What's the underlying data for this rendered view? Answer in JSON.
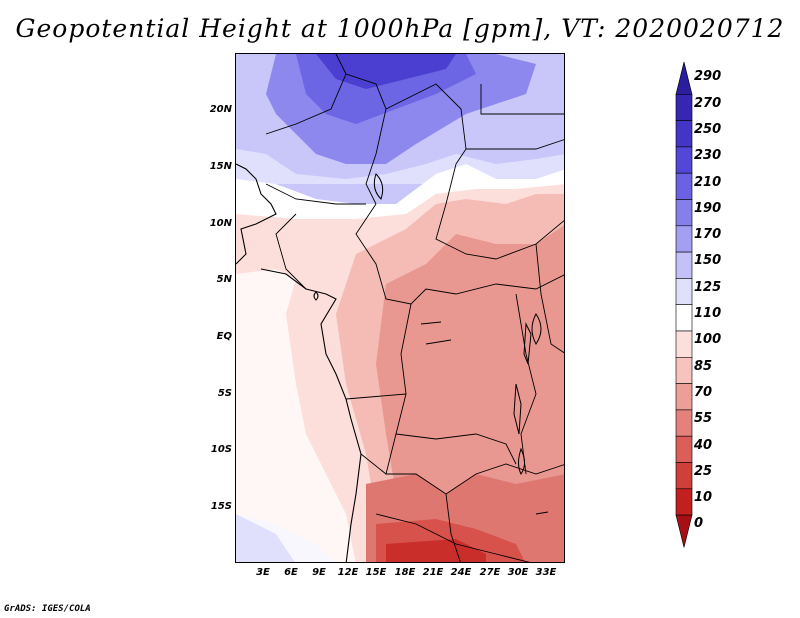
{
  "title": "Geopotential Height at 1000hPa [gpm], VT: 2020020712",
  "credit": "GrADS: IGES/COLA",
  "lat_labels": [
    "20N",
    "15N",
    "10N",
    "5N",
    "EQ",
    "5S",
    "10S",
    "15S"
  ],
  "lon_labels": [
    "3E",
    "6E",
    "9E",
    "12E",
    "15E",
    "18E",
    "21E",
    "24E",
    "27E",
    "30E",
    "33E"
  ],
  "colorbar": {
    "levels": [
      "290",
      "270",
      "250",
      "230",
      "210",
      "190",
      "170",
      "150",
      "125",
      "110",
      "100",
      "85",
      "70",
      "55",
      "40",
      "25",
      "10",
      "0"
    ],
    "colors": [
      "#2a1d9e",
      "#3526b4",
      "#4336c6",
      "#5247d6",
      "#6a62e3",
      "#857fec",
      "#a39ff3",
      "#c3c1f8",
      "#e1e0fc",
      "#ffffff",
      "#fcdeda",
      "#f7c4bd",
      "#ee9e96",
      "#e4817b",
      "#db5e58",
      "#d13f3a",
      "#c2201f",
      "#a80f14"
    ]
  }
}
